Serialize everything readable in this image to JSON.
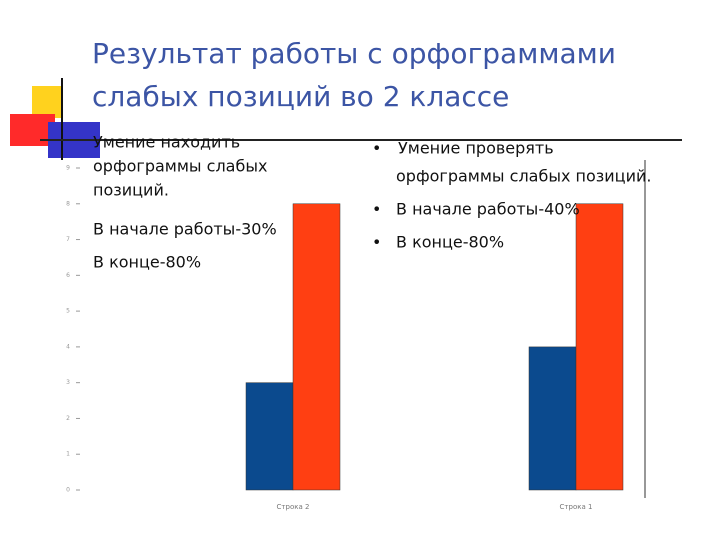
{
  "slide": {
    "title_lines": [
      "Результат работы с орфограммами",
      "слабых позиций во 2 классе"
    ],
    "left_text": {
      "lines": [
        "Умение находить",
        "орфограммы слабых",
        "позиций."
      ],
      "items": [
        "В начале работы-30%",
        "В конце-80%"
      ]
    },
    "right_text": {
      "bullets": [
        [
          "Умение проверять",
          "орфограммы слабых позиций."
        ],
        [
          "В начале работы-40%"
        ],
        [
          "В конце-80%"
        ]
      ]
    }
  },
  "chart_data": {
    "type": "bar",
    "categories": [
      "Строка 2",
      "Строка 1"
    ],
    "series": [
      {
        "color": "#0b4a8e",
        "values": [
          3,
          4
        ]
      },
      {
        "color": "#ff3f12",
        "values": [
          8,
          8
        ]
      }
    ],
    "ylim": [
      0,
      9
    ],
    "yticks": [
      0,
      1,
      2,
      3,
      4,
      5,
      6,
      7,
      8,
      9
    ]
  }
}
